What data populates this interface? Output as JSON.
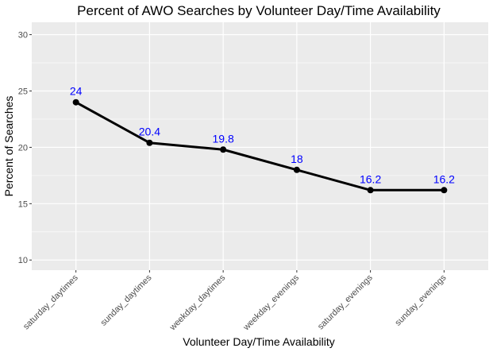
{
  "chart_data": {
    "type": "line",
    "title": "Percent of AWO Searches by Volunteer Day/Time Availability",
    "xlabel": "Volunteer Day/Time Availability",
    "ylabel": "Percent of Searches",
    "categories": [
      "saturday_daytimes",
      "sunday_daytimes",
      "weekday_daytimes",
      "weekday_evenings",
      "saturday_evenings",
      "sunday_evenings"
    ],
    "values": [
      24,
      20.4,
      19.8,
      18,
      16.2,
      16.2
    ],
    "data_labels": [
      "24",
      "20.4",
      "19.8",
      "18",
      "16.2",
      "16.2"
    ],
    "yticks": [
      10,
      15,
      20,
      25,
      30
    ],
    "ytick_labels": [
      "10",
      "15",
      "20",
      "25",
      "30"
    ],
    "ylim": [
      9.1,
      31.1
    ],
    "grid": true,
    "line_color": "#000000",
    "label_color": "#0000ff",
    "panel_color": "#ebebeb",
    "grid_color": "#ffffff"
  }
}
